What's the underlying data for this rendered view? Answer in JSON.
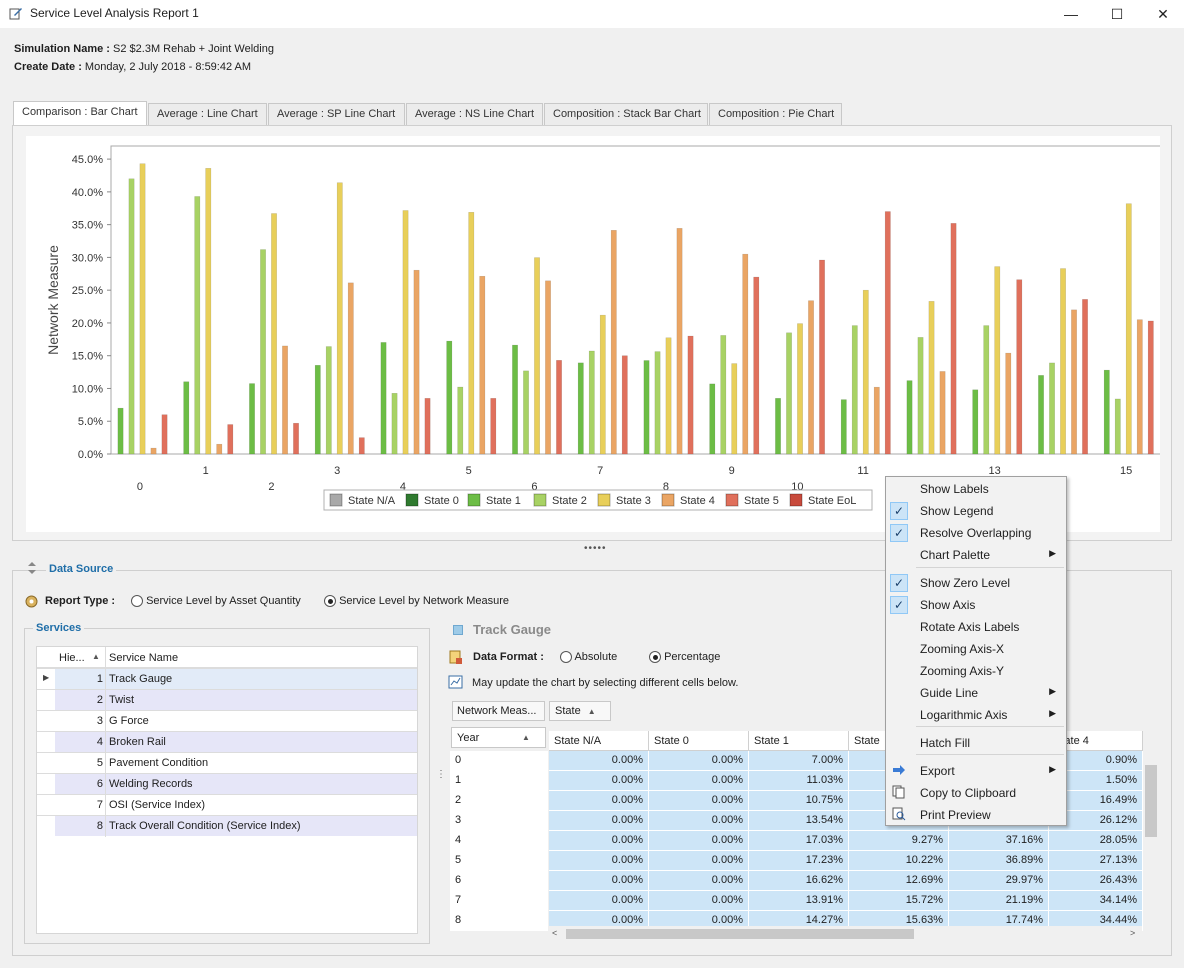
{
  "window": {
    "title": "Service Level Analysis Report 1",
    "minimize": "—",
    "maximize": "☐",
    "close": "✕"
  },
  "header": {
    "sim_label": "Simulation Name :",
    "sim_value": "S2 $2.3M Rehab + Joint Welding",
    "date_label": "Create Date :",
    "date_value": "Monday, 2 July 2018 - 8:59:42 AM"
  },
  "tabs": [
    "Comparison : Bar Chart",
    "Average : Line Chart",
    "Average : SP Line Chart",
    "Average : NS Line Chart",
    "Composition : Stack Bar Chart",
    "Composition : Pie Chart"
  ],
  "chart_data": {
    "type": "bar",
    "ylabel": "Network Measure",
    "ylim": [
      0,
      47
    ],
    "yticks": [
      "0.0%",
      "5.0%",
      "10.0%",
      "15.0%",
      "20.0%",
      "25.0%",
      "30.0%",
      "35.0%",
      "40.0%",
      "45.0%"
    ],
    "categories": [
      "0",
      "1",
      "2",
      "3",
      "4",
      "5",
      "6",
      "7",
      "8",
      "9",
      "10",
      "11",
      "12",
      "13",
      "14",
      "15"
    ],
    "x_labels_shown": [
      "0",
      "1",
      "2",
      "3",
      "4",
      "5",
      "6",
      "7",
      "8",
      "9",
      "10",
      "11",
      "",
      "13",
      "",
      "15"
    ],
    "legend_placement": "bottom",
    "legend": [
      "State N/A",
      "State 0",
      "State 1",
      "State 2",
      "State 3",
      "State 4",
      "State 5",
      "State EoL"
    ],
    "series": [
      {
        "name": "State 1",
        "color": "#6cbd45",
        "values": [
          7.0,
          11.03,
          10.75,
          13.54,
          17.03,
          17.23,
          16.62,
          13.91,
          14.27,
          10.7,
          8.5,
          8.3,
          11.2,
          9.8,
          12.0,
          12.8
        ]
      },
      {
        "name": "State 2",
        "color": "#a8d264",
        "values": [
          42.0,
          39.3,
          31.2,
          16.4,
          9.27,
          10.22,
          12.69,
          15.72,
          15.63,
          18.1,
          18.5,
          19.6,
          17.8,
          19.6,
          13.9,
          8.4
        ]
      },
      {
        "name": "State 3",
        "color": "#e8cf5a",
        "values": [
          44.3,
          43.6,
          36.7,
          41.4,
          37.16,
          36.89,
          29.97,
          21.19,
          17.74,
          13.8,
          19.9,
          25.0,
          23.3,
          28.6,
          28.3,
          38.2
        ]
      },
      {
        "name": "State 4",
        "color": "#eaa564",
        "values": [
          0.9,
          1.5,
          16.49,
          26.12,
          28.05,
          27.13,
          26.43,
          34.14,
          34.44,
          30.5,
          23.4,
          10.2,
          12.6,
          15.4,
          22.0,
          20.5
        ]
      },
      {
        "name": "State 5",
        "color": "#e0705c",
        "values": [
          6.0,
          4.5,
          4.7,
          2.5,
          8.5,
          8.5,
          14.3,
          15.0,
          18.0,
          27.0,
          29.6,
          37.0,
          35.2,
          26.6,
          23.6,
          20.3
        ]
      }
    ],
    "legend_colors": [
      "#a9a9a9",
      "#2f7a2f",
      "#6cbd45",
      "#a8d264",
      "#e8cf5a",
      "#eaa564",
      "#e0705c",
      "#c84a3c"
    ]
  },
  "datasource": {
    "title": "Data Source",
    "report_type_label": "Report Type :",
    "option_quantity": "Service Level by Asset Quantity",
    "option_network": "Service Level by Network Measure",
    "services_title": "Services",
    "col_hierarchy": "Hie...",
    "col_service_name": "Service Name",
    "services": [
      {
        "num": "1",
        "name": "Track Gauge"
      },
      {
        "num": "2",
        "name": "Twist"
      },
      {
        "num": "3",
        "name": "G Force"
      },
      {
        "num": "4",
        "name": "Broken Rail"
      },
      {
        "num": "5",
        "name": "Pavement Condition"
      },
      {
        "num": "6",
        "name": "Welding Records"
      },
      {
        "num": "7",
        "name": "OSI (Service Index)"
      },
      {
        "num": "8",
        "name": "Track Overall Condition (Service Index)"
      }
    ],
    "selected_service": "Track Gauge",
    "data_format_label": "Data Format :",
    "format_absolute": "Absolute",
    "format_percentage": "Percentage",
    "hint": "May update the chart by selecting different cells below.",
    "pivot_field_network": "Network Meas...",
    "pivot_field_state": "State",
    "pivot_field_year": "Year",
    "grid_headers": [
      "State N/A",
      "State 0",
      "State 1",
      "State",
      "",
      "State 4"
    ],
    "grid_rows": [
      {
        "year": "0",
        "cells": [
          "0.00%",
          "0.00%",
          "7.00%",
          "",
          "",
          "0.90%"
        ]
      },
      {
        "year": "1",
        "cells": [
          "0.00%",
          "0.00%",
          "11.03%",
          "",
          "",
          "1.50%"
        ]
      },
      {
        "year": "2",
        "cells": [
          "0.00%",
          "0.00%",
          "10.75%",
          "",
          "",
          "16.49%"
        ]
      },
      {
        "year": "3",
        "cells": [
          "0.00%",
          "0.00%",
          "13.54%",
          "",
          "",
          "26.12%"
        ]
      },
      {
        "year": "4",
        "cells": [
          "0.00%",
          "0.00%",
          "17.03%",
          "9.27%",
          "37.16%",
          "28.05%"
        ]
      },
      {
        "year": "5",
        "cells": [
          "0.00%",
          "0.00%",
          "17.23%",
          "10.22%",
          "36.89%",
          "27.13%"
        ]
      },
      {
        "year": "6",
        "cells": [
          "0.00%",
          "0.00%",
          "16.62%",
          "12.69%",
          "29.97%",
          "26.43%"
        ]
      },
      {
        "year": "7",
        "cells": [
          "0.00%",
          "0.00%",
          "13.91%",
          "15.72%",
          "21.19%",
          "34.14%"
        ]
      },
      {
        "year": "8",
        "cells": [
          "0.00%",
          "0.00%",
          "14.27%",
          "15.63%",
          "17.74%",
          "34.44%"
        ]
      }
    ]
  },
  "context_menu": {
    "items": [
      {
        "label": "Show Labels",
        "checked": false,
        "submenu": false
      },
      {
        "label": "Show Legend",
        "checked": true,
        "submenu": false
      },
      {
        "label": "Resolve Overlapping",
        "checked": true,
        "submenu": false
      },
      {
        "label": "Chart Palette",
        "checked": false,
        "submenu": true
      },
      {
        "label": "Show Zero Level",
        "checked": true,
        "submenu": false
      },
      {
        "label": "Show Axis",
        "checked": true,
        "submenu": false
      },
      {
        "label": "Rotate Axis Labels",
        "checked": false,
        "submenu": false
      },
      {
        "label": "Zooming Axis-X",
        "checked": false,
        "submenu": false
      },
      {
        "label": "Zooming Axis-Y",
        "checked": false,
        "submenu": false
      },
      {
        "label": "Guide Line",
        "checked": false,
        "submenu": true
      },
      {
        "label": "Logarithmic Axis",
        "checked": false,
        "submenu": true
      },
      {
        "label": "Hatch Fill",
        "checked": false,
        "submenu": false
      },
      {
        "label": "Export",
        "checked": false,
        "submenu": true
      },
      {
        "label": "Copy to Clipboard",
        "checked": false,
        "submenu": false
      },
      {
        "label": "Print Preview",
        "checked": false,
        "submenu": false
      }
    ]
  }
}
